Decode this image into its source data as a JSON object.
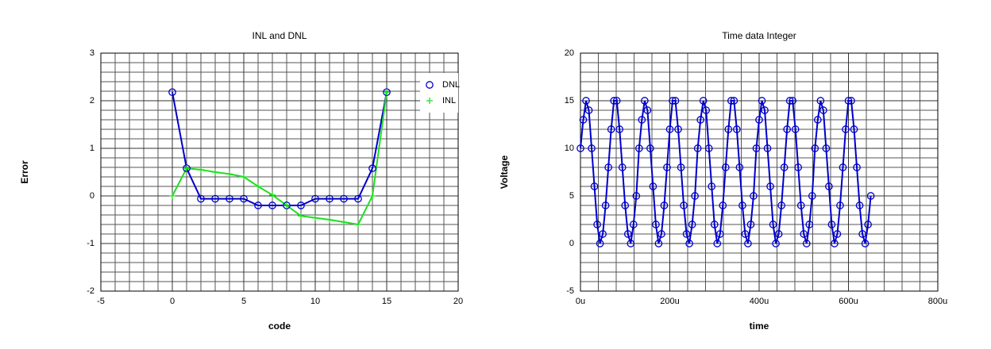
{
  "chart_data": [
    {
      "type": "line",
      "title": "INL and DNL",
      "x_label": "code",
      "y_label": "Error",
      "x": [
        0,
        1,
        2,
        3,
        4,
        5,
        6,
        7,
        8,
        9,
        10,
        11,
        12,
        13,
        14,
        15
      ],
      "series": [
        {
          "name": "DNL",
          "color": "#0000cc",
          "marker": "o",
          "values": [
            2.18,
            0.58,
            -0.06,
            -0.06,
            -0.06,
            -0.06,
            -0.2,
            -0.2,
            -0.2,
            -0.2,
            -0.06,
            -0.06,
            -0.06,
            -0.06,
            0.58,
            2.18
          ]
        },
        {
          "name": "INL",
          "color": "#22dd22",
          "marker": "+",
          "values": [
            0,
            0.58,
            0.55,
            0.5,
            0.46,
            0.4,
            0.2,
            0.02,
            -0.2,
            -0.42,
            -0.46,
            -0.5,
            -0.55,
            -0.6,
            0,
            2.18
          ]
        }
      ],
      "xlim": [
        -5,
        20
      ],
      "ylim": [
        -2,
        3
      ],
      "xticks": [
        -5,
        0,
        5,
        10,
        15,
        20
      ],
      "yticks": [
        -2,
        -1,
        0,
        1,
        2,
        3
      ],
      "grid": true,
      "minor_grid": {
        "x": 1,
        "y": 0.2
      },
      "legend": "upper right"
    },
    {
      "type": "line",
      "title": "Time data Integer",
      "x_label": "time",
      "y_label": "Voltage",
      "x": [
        0,
        6.25,
        12.5,
        18.75,
        25,
        31.25,
        37.5,
        43.75,
        50,
        56.25,
        62.5,
        68.75,
        75,
        81.25,
        87.5,
        93.75,
        100,
        106.25,
        112.5,
        118.75,
        125,
        131.25,
        137.5,
        143.75,
        150,
        156.25,
        162.5,
        168.75,
        175,
        181.25,
        187.5,
        193.75,
        200,
        206.25,
        212.5,
        218.75,
        225,
        231.25,
        237.5,
        243.75,
        250,
        256.25,
        262.5,
        268.75,
        275,
        281.25,
        287.5,
        293.75,
        300,
        306.25,
        312.5,
        318.75,
        325,
        331.25,
        337.5,
        343.75,
        350,
        356.25,
        362.5,
        368.75,
        375,
        381.25,
        387.5,
        393.75,
        400,
        406.25,
        412.5,
        418.75,
        425,
        431.25,
        437.5,
        443.75,
        450,
        456.25,
        462.5,
        468.75,
        475,
        481.25,
        487.5,
        493.75,
        500,
        506.25,
        512.5,
        518.75,
        525,
        531.25,
        537.5,
        543.75,
        550,
        556.25,
        562.5,
        568.75,
        575,
        581.25,
        587.5,
        593.75,
        600,
        606.25,
        612.5,
        618.75,
        625,
        631.25,
        637.5,
        643.75,
        650
      ],
      "series": [
        {
          "color": "#0000cc",
          "marker": "o",
          "values": [
            10,
            13,
            15,
            14,
            10,
            6,
            2,
            0,
            1,
            4,
            8,
            12,
            15,
            15,
            12,
            8,
            4,
            1,
            0,
            2,
            5,
            10,
            13,
            15,
            14,
            10,
            6,
            2,
            0,
            1,
            4,
            8,
            12,
            15,
            15,
            12,
            8,
            4,
            1,
            0,
            2,
            5,
            10,
            13,
            15,
            14,
            10,
            6,
            2,
            0,
            1,
            4,
            8,
            12,
            15,
            15,
            12,
            8,
            4,
            1,
            0,
            2,
            5,
            10,
            13,
            15,
            14,
            10,
            6,
            2,
            0,
            1,
            4,
            8,
            12,
            15,
            15,
            12,
            8,
            4,
            1,
            0,
            2,
            5,
            10,
            13,
            15,
            14,
            10,
            6,
            2,
            0,
            1,
            4,
            8,
            12,
            15,
            15,
            12,
            8,
            4,
            1,
            0,
            2,
            5
          ]
        }
      ],
      "xlim": [
        0,
        800
      ],
      "ylim": [
        -5,
        20
      ],
      "xticks": [
        {
          "value": 0,
          "label": "0u"
        },
        {
          "value": 200,
          "label": "200u"
        },
        {
          "value": 400,
          "label": "400u"
        },
        {
          "value": 600,
          "label": "600u"
        },
        {
          "value": 800,
          "label": "800u"
        }
      ],
      "yticks": [
        -5,
        0,
        5,
        10,
        15,
        20
      ],
      "grid": true,
      "minor_grid": {
        "x": 40,
        "y": 1
      }
    }
  ]
}
